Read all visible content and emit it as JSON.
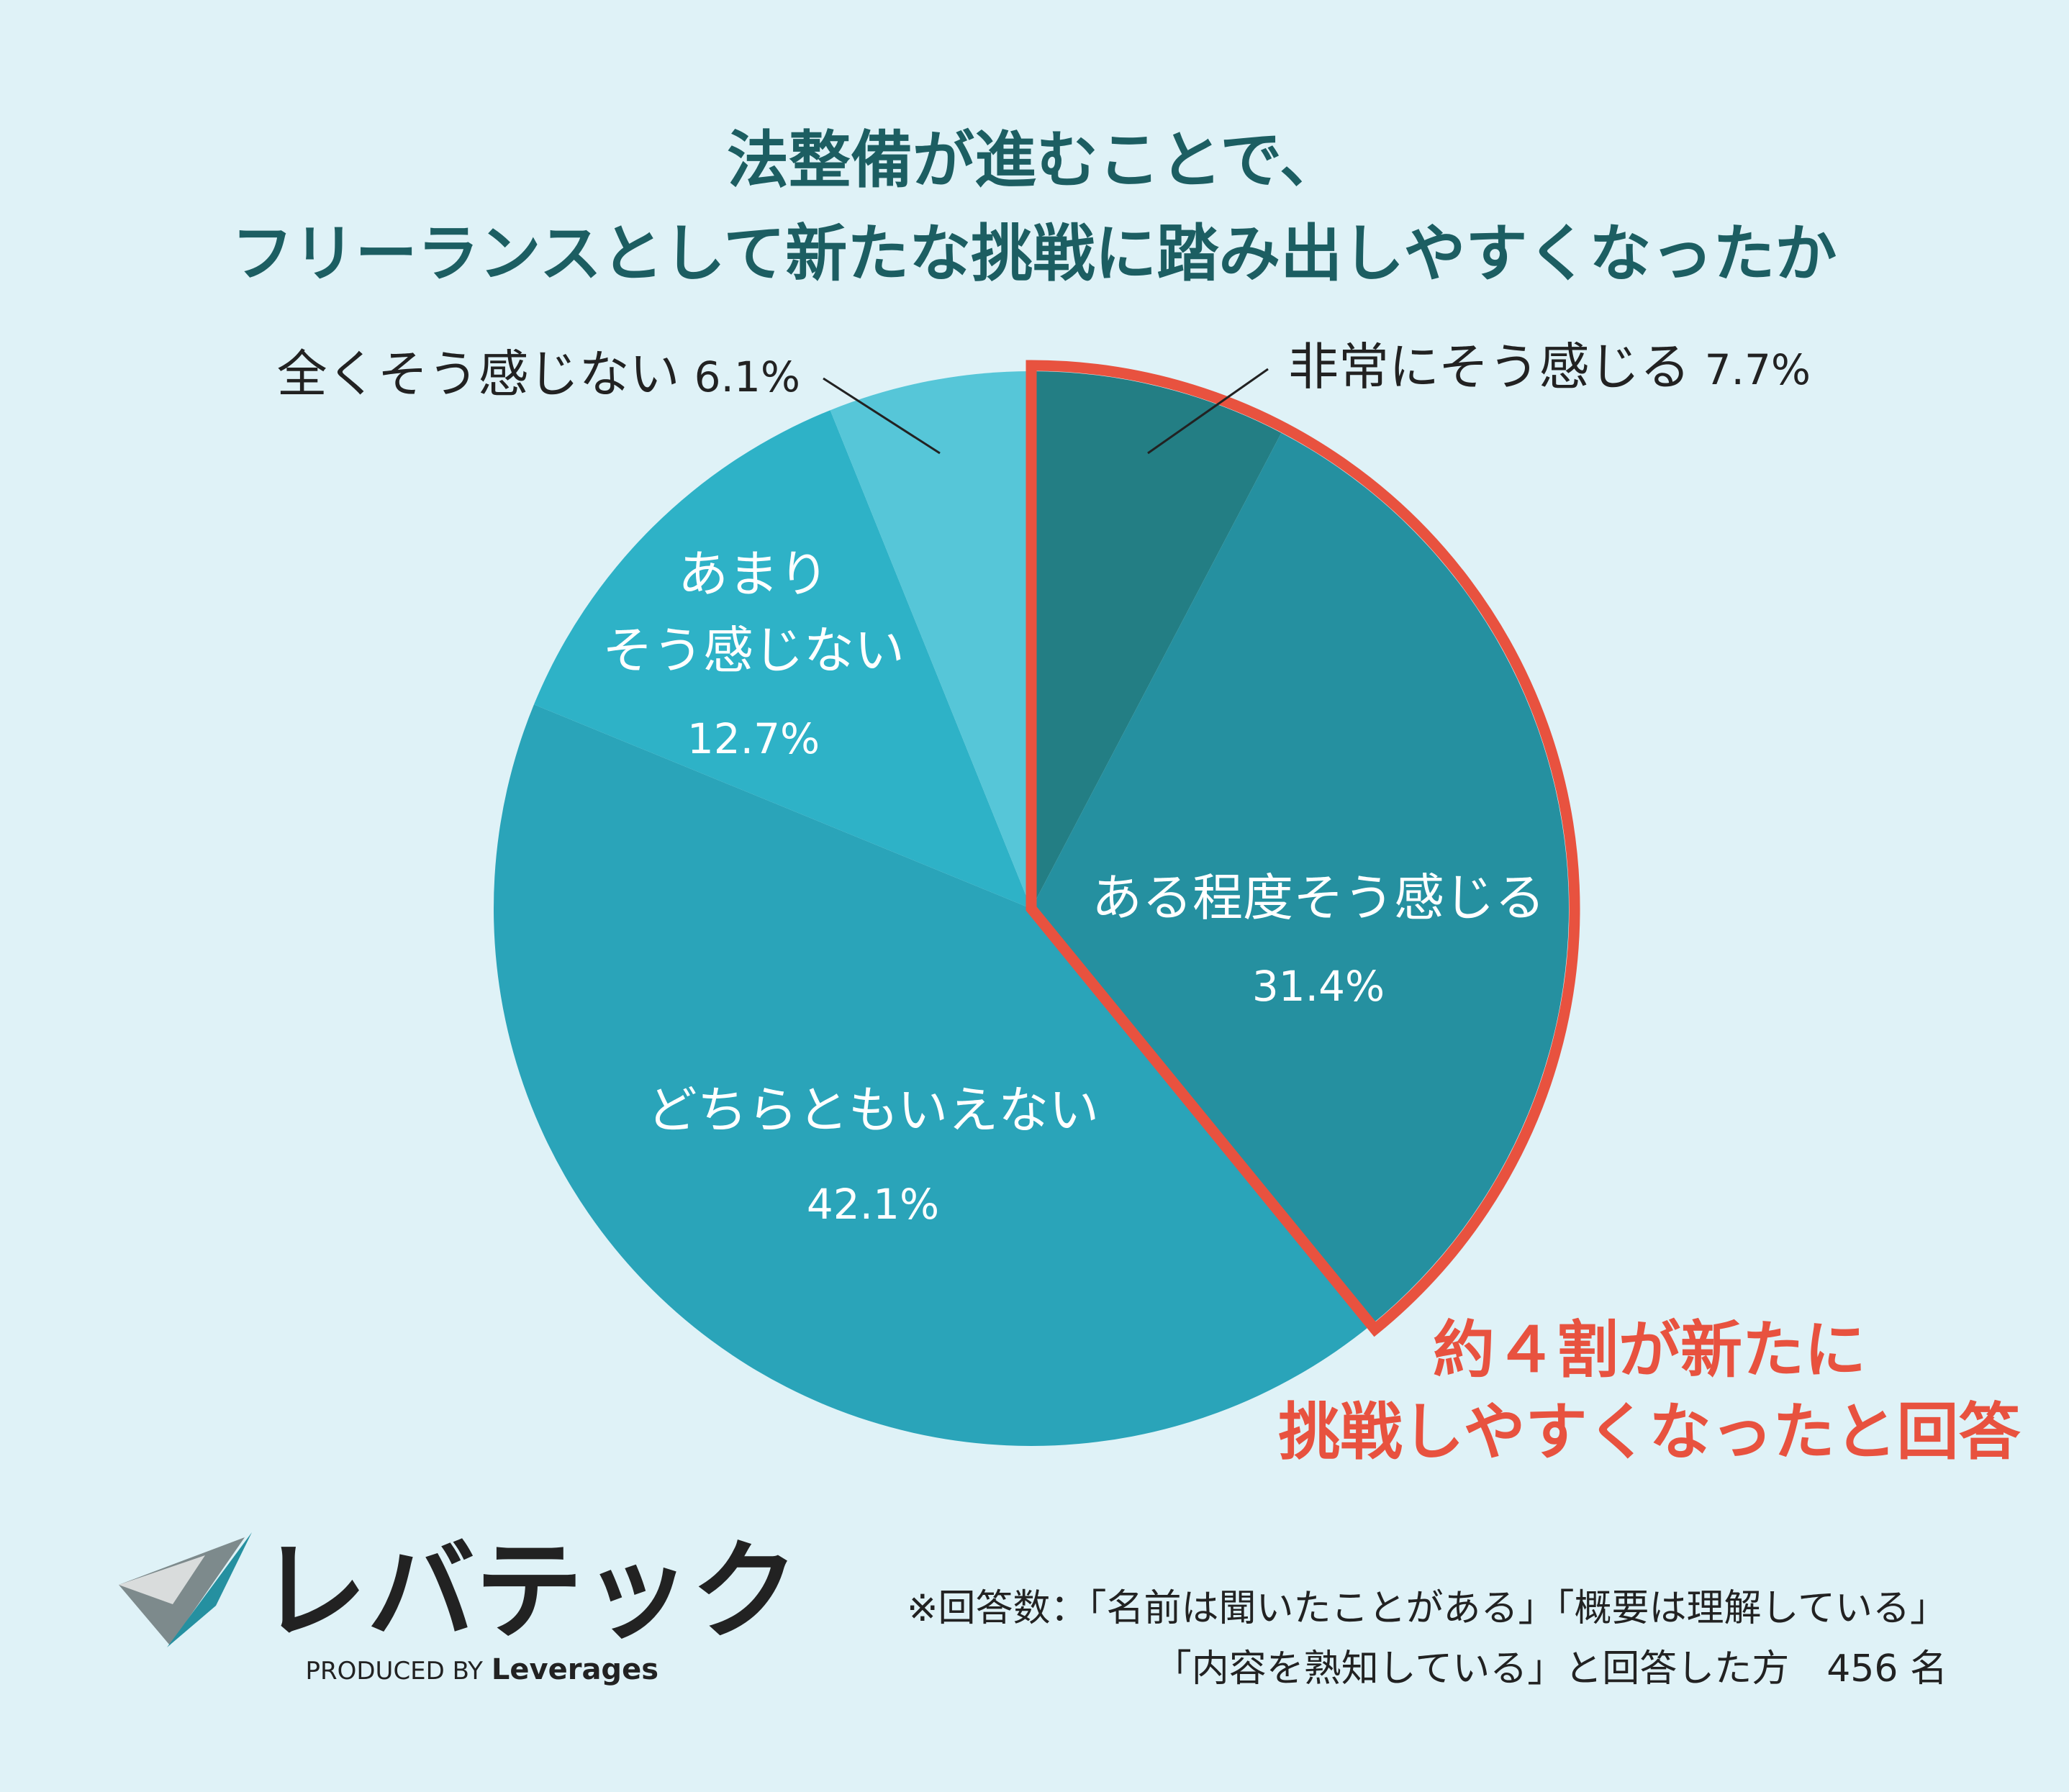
{
  "colors": {
    "background": "#dff2f7",
    "title": "#1c5e62",
    "label_dark": "#222222",
    "label_light": "#ffffff",
    "highlight": "#e8523f",
    "leader": "#222222"
  },
  "chart_data": {
    "type": "pie",
    "title": [
      "法整備が進むことで、",
      "フリーランスとして新たな挑戦に踏み出しやすくなったか"
    ],
    "slices": [
      {
        "label": [
          "非常にそう感じる"
        ],
        "value": 7.7,
        "display": "7.7%",
        "color": "#237e84",
        "label_position": "outside"
      },
      {
        "label": [
          "ある程度そう感じる"
        ],
        "value": 31.4,
        "display": "31.4%",
        "color": "#2590a0",
        "label_position": "inside"
      },
      {
        "label": [
          "どちらともいえない"
        ],
        "value": 42.1,
        "display": "42.1%",
        "color": "#2aa4b9",
        "label_position": "inside"
      },
      {
        "label": [
          "あまり",
          "そう感じない"
        ],
        "value": 12.7,
        "display": "12.7%",
        "color": "#2eb2c7",
        "label_position": "inside"
      },
      {
        "label": [
          "全くそう感じない"
        ],
        "value": 6.1,
        "display": "6.1%",
        "color": "#56c6d8",
        "label_position": "outside"
      }
    ],
    "highlight": {
      "slices": [
        0,
        1
      ],
      "text": [
        "約４割が新たに",
        "挑戦しやすくなったと回答"
      ]
    },
    "legend": "none"
  },
  "footer": {
    "note": [
      "※回答数：「名前は聞いたことがある」「概要は理解している」",
      "「内容を熟知している」と回答した方　456 名"
    ]
  },
  "logo": {
    "brand": "レバテック",
    "produced_by": "PRODUCED BY",
    "company": "Leverages"
  }
}
